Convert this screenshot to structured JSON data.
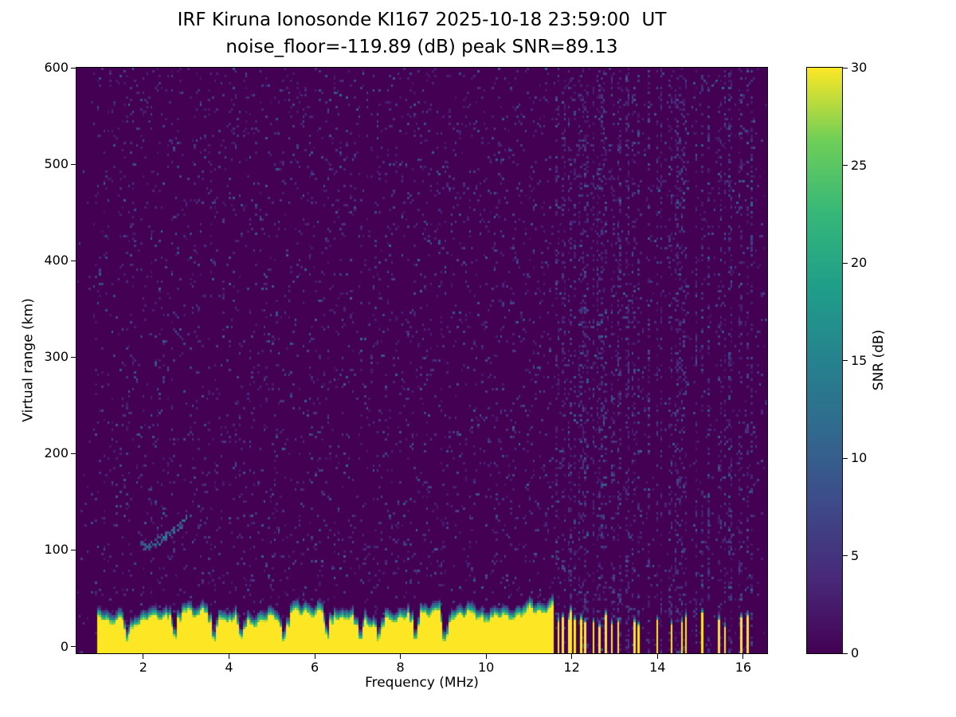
{
  "chart_data": {
    "type": "heatmap",
    "title": "IRF Kiruna Ionosonde KI167 2025-10-18 23:59:00  UT",
    "subtitle": "noise_floor=-119.89 (dB) peak SNR=89.13",
    "station": "KI167",
    "timestamp_ut": "2025-10-18 23:59:00",
    "noise_floor_db": -119.89,
    "peak_snr_db": 89.13,
    "xlabel": "Frequency (MHz)",
    "ylabel": "Virtual range (km)",
    "colorbar_label": "SNR (dB)",
    "x_ticks": [
      2,
      4,
      6,
      8,
      10,
      12,
      14,
      16
    ],
    "y_ticks": [
      0,
      100,
      200,
      300,
      400,
      500,
      600
    ],
    "colorbar_ticks": [
      0,
      5,
      10,
      15,
      20,
      25,
      30
    ],
    "x_range": [
      0.44,
      16.56
    ],
    "y_range": [
      -7,
      600
    ],
    "color_range": [
      0,
      30
    ],
    "colormap": "viridis",
    "colormap_stops": [
      "#440154",
      "#482878",
      "#3e4989",
      "#31688e",
      "#26828e",
      "#1f9e89",
      "#35b779",
      "#6ece58",
      "#fde725"
    ],
    "grid": false,
    "legend": "colorbar-right",
    "features": {
      "ground_echo_band": {
        "description": "saturated near-range echo band across the sounding sweep",
        "freq_start_mhz": 0.9,
        "freq_end_mhz": 11.58,
        "mean_top_km": 30,
        "snr_db": 30,
        "notch_freqs_mhz": [
          1.65,
          2.75,
          3.65,
          4.3,
          5.3,
          6.3,
          7.05,
          7.5,
          8.35,
          9.05
        ]
      },
      "interference_stripes": {
        "description": "intermittent low-range stripes above 11.6 MHz",
        "snr_db": 30,
        "stripes": [
          [
            11.68,
            0.06,
            30
          ],
          [
            11.8,
            0.05,
            28
          ],
          [
            11.95,
            0.09,
            32
          ],
          [
            12.07,
            0.06,
            26
          ],
          [
            12.2,
            0.05,
            30
          ],
          [
            12.33,
            0.05,
            24
          ],
          [
            12.5,
            0.06,
            28
          ],
          [
            12.63,
            0.05,
            22
          ],
          [
            12.78,
            0.05,
            30
          ],
          [
            12.95,
            0.05,
            26
          ],
          [
            13.1,
            0.05,
            24
          ],
          [
            13.45,
            0.06,
            28
          ],
          [
            13.56,
            0.04,
            22
          ],
          [
            14.0,
            0.06,
            30
          ],
          [
            14.32,
            0.05,
            26
          ],
          [
            14.55,
            0.05,
            24
          ],
          [
            14.65,
            0.04,
            28
          ],
          [
            15.05,
            0.06,
            30
          ],
          [
            15.45,
            0.05,
            26
          ],
          [
            15.57,
            0.04,
            22
          ],
          [
            15.95,
            0.05,
            28
          ],
          [
            16.1,
            0.05,
            30
          ]
        ],
        "noise_column_freqs_mhz": [
          12.3,
          12.7,
          13.1,
          13.3,
          13.8,
          14.1,
          14.45,
          14.9,
          15.2,
          15.7,
          16.2
        ]
      },
      "ionospheric_echo": {
        "description": "faint rising E-region echo trace",
        "freq_start_mhz": 1.95,
        "freq_end_mhz": 3.05,
        "range_start_km": 104,
        "range_end_km": 134,
        "max_snr_db": 15
      },
      "background_noise": {
        "speckle_probability": 0.06,
        "speckle_snr_db_max": 12
      }
    }
  }
}
